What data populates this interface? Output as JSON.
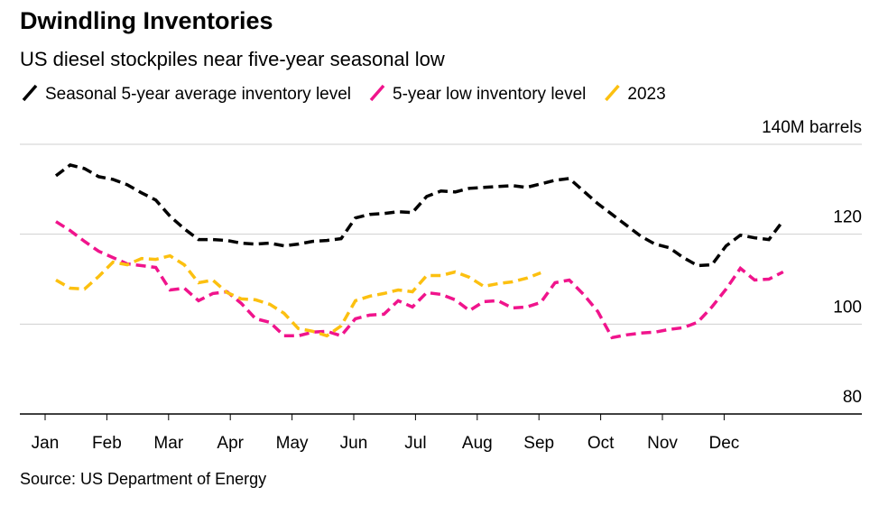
{
  "chart_data": {
    "type": "line",
    "title": "Dwindling Inventories",
    "subtitle": "US diesel stockpiles near five-year seasonal low",
    "source": "Source: US Department of Energy",
    "xticks": [
      "Jan",
      "Feb",
      "Mar",
      "Apr",
      "May",
      "Jun",
      "Jul",
      "Aug",
      "Sep",
      "Oct",
      "Nov",
      "Dec"
    ],
    "ylim": [
      80,
      140
    ],
    "yticks": [
      80,
      100,
      120,
      {
        "value": 140,
        "label": "140M barrels"
      }
    ],
    "grid": true,
    "series": [
      {
        "name": "Seasonal 5-year average inventory level",
        "color": "#000000",
        "values": [
          133,
          135.4,
          134.6,
          132.8,
          132.2,
          131,
          129.2,
          127.6,
          124,
          121.2,
          118.8,
          118.8,
          118.6,
          118,
          117.8,
          118,
          117.4,
          117.8,
          118.4,
          118.6,
          119,
          123.6,
          124.4,
          124.6,
          125,
          124.8,
          128.4,
          129.6,
          129.4,
          130.2,
          130.4,
          130.6,
          130.8,
          130.4,
          131.2,
          132,
          132.4,
          129.6,
          126.8,
          124.4,
          122,
          119.6,
          117.8,
          117,
          114.8,
          113,
          113.2,
          117.4,
          119.8,
          119.2,
          118.8,
          123
        ]
      },
      {
        "name": "5-year low inventory level",
        "color": "#f0148c",
        "values": [
          122.8,
          120.8,
          118.4,
          116.2,
          114.8,
          113.4,
          113,
          112.6,
          107.6,
          108,
          105.2,
          106.8,
          107.2,
          104.6,
          101.2,
          100.4,
          97.4,
          97.4,
          98.2,
          98.4,
          97.4,
          101.2,
          102,
          102.2,
          105.2,
          103.8,
          107,
          106.6,
          105.4,
          103,
          105,
          105.2,
          103.6,
          103.8,
          104.8,
          109.2,
          109.8,
          106.6,
          102.8,
          97,
          97.6,
          98,
          98.2,
          98.8,
          99.2,
          100.4,
          103.8,
          107.8,
          112.4,
          109.8,
          110,
          111.6
        ]
      },
      {
        "name": "2023",
        "color": "#fcc010",
        "values": [
          109.8,
          108,
          107.8,
          110.6,
          113.8,
          113.2,
          114.6,
          114.4,
          115.2,
          113.2,
          109.2,
          109.8,
          107,
          105.6,
          105.4,
          104.4,
          102.4,
          99,
          98.4,
          97.4,
          99.6,
          105.2,
          106.2,
          106.8,
          107.6,
          107.2,
          110.8,
          110.8,
          111.6,
          110.4,
          108.4,
          109,
          109.4,
          110.2,
          111.4
        ]
      }
    ]
  }
}
